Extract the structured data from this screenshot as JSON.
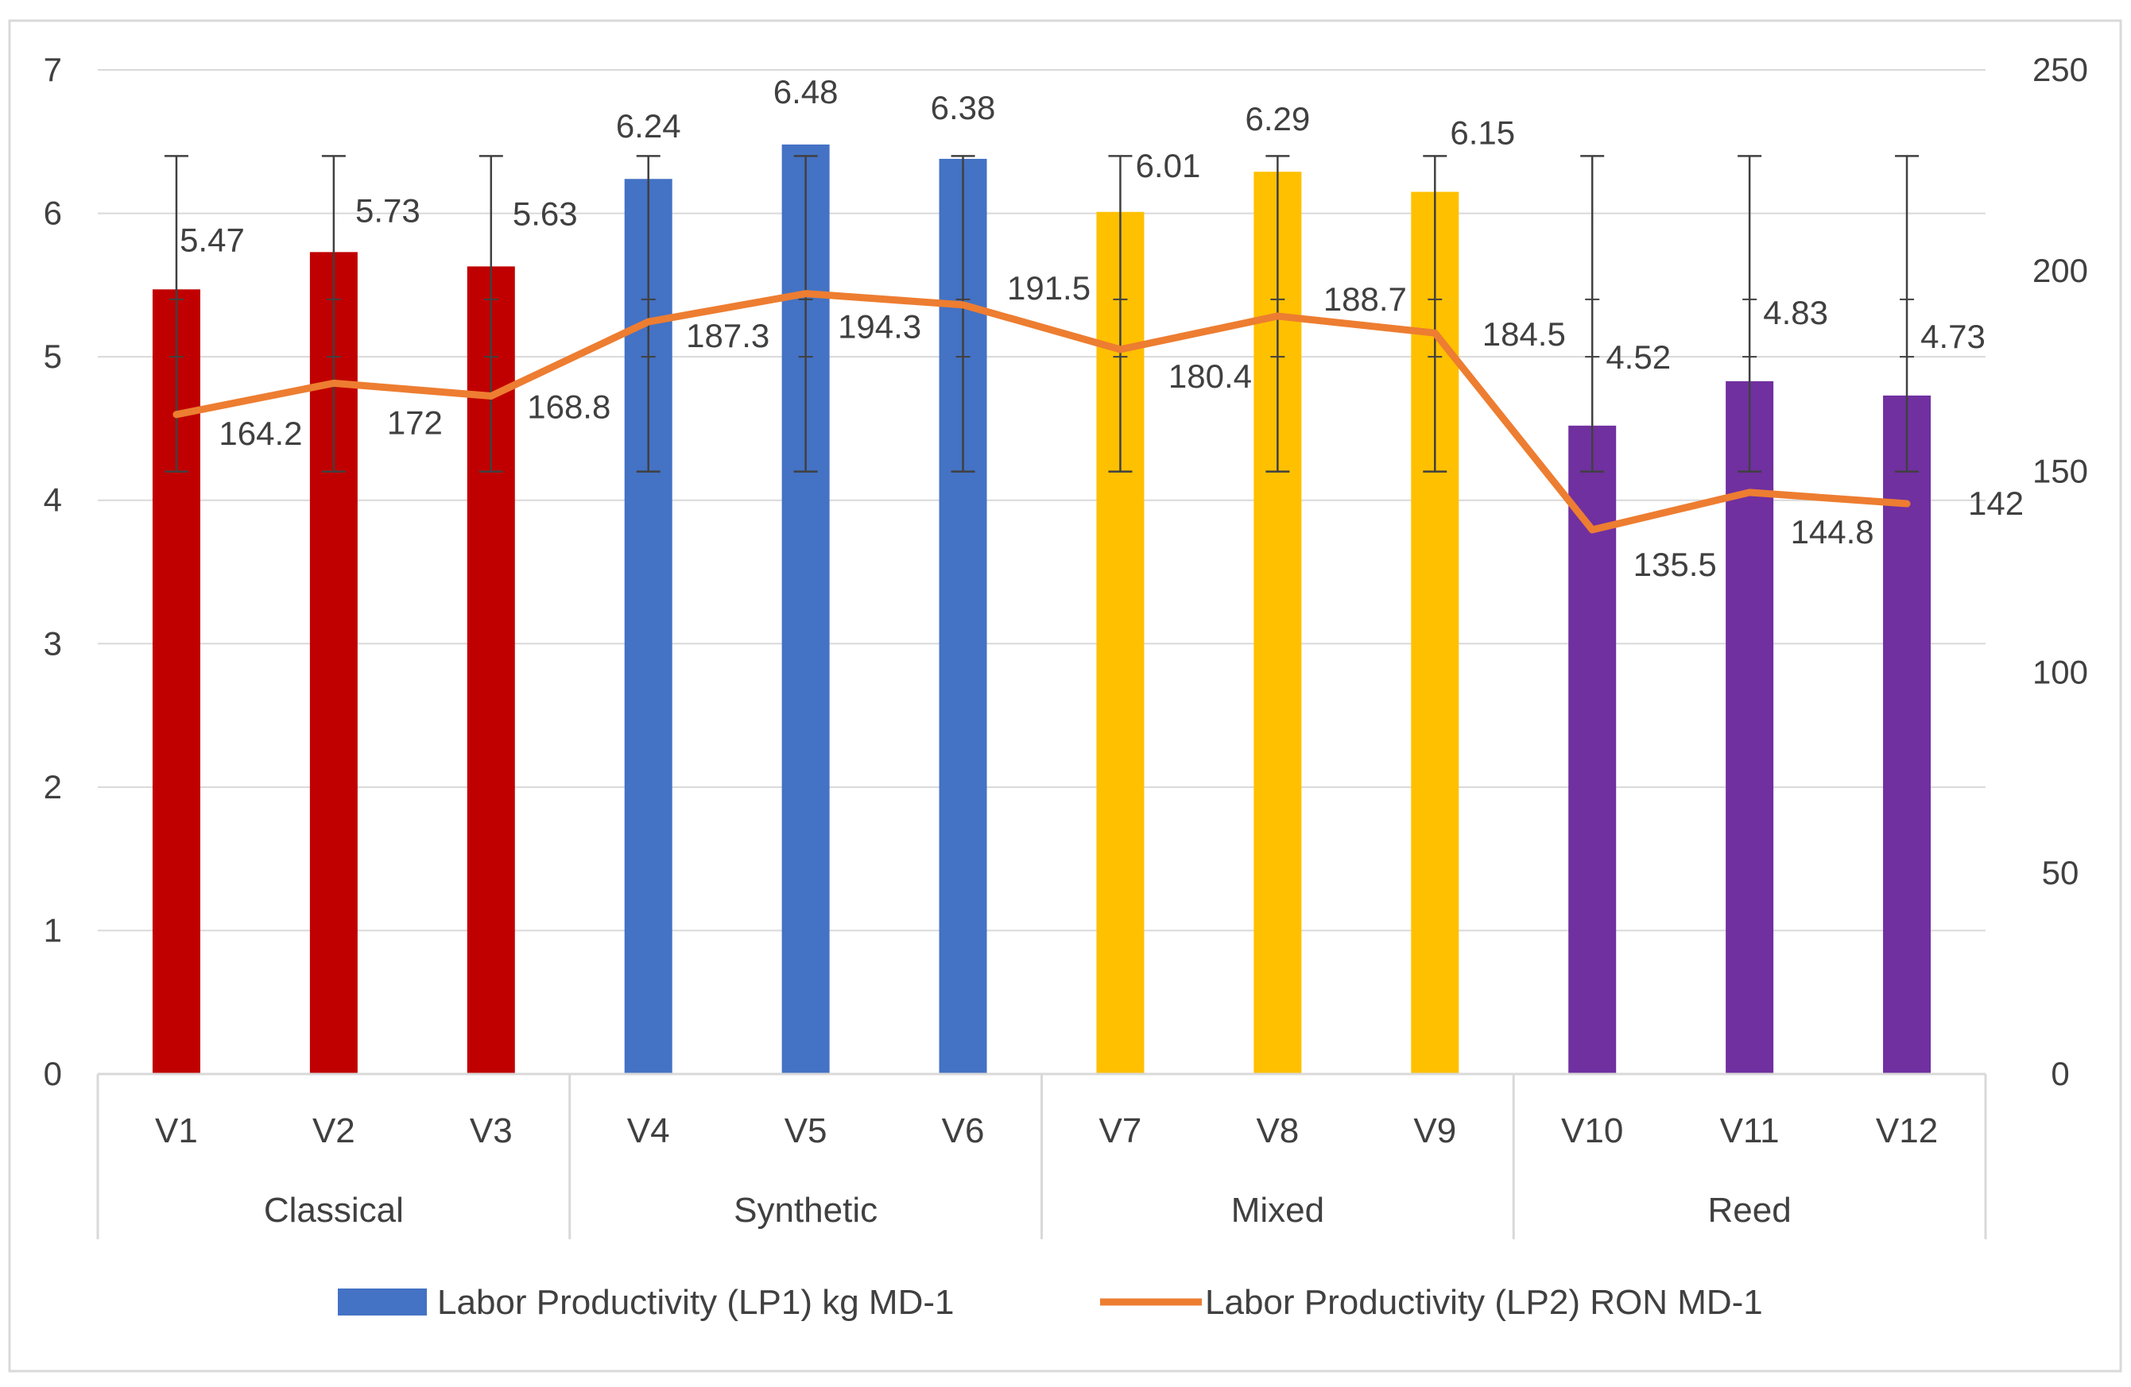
{
  "chart_data": {
    "type": "bar+line",
    "categories": [
      "V1",
      "V2",
      "V3",
      "V4",
      "V5",
      "V6",
      "V7",
      "V8",
      "V9",
      "V10",
      "V11",
      "V12"
    ],
    "groups": [
      {
        "name": "Classical",
        "members": [
          "V1",
          "V2",
          "V3"
        ],
        "color": "#C00000"
      },
      {
        "name": "Synthetic",
        "members": [
          "V4",
          "V5",
          "V6"
        ],
        "color": "#4472C4"
      },
      {
        "name": "Mixed",
        "members": [
          "V7",
          "V8",
          "V9"
        ],
        "color": "#FFC000"
      },
      {
        "name": "Reed",
        "members": [
          "V10",
          "V11",
          "V12"
        ],
        "color": "#7030A0"
      }
    ],
    "series": [
      {
        "name": "Labor Productivity (LP1) kg MD-1",
        "type": "bar",
        "axis": "left",
        "values": [
          5.47,
          5.73,
          5.63,
          6.24,
          6.48,
          6.38,
          6.01,
          6.29,
          6.15,
          4.52,
          4.83,
          4.73
        ],
        "value_labels": [
          "5.47",
          "5.73",
          "5.63",
          "6.24",
          "6.48",
          "6.38",
          "6.01",
          "6.29",
          "6.15",
          "4.52",
          "4.83",
          "4.73"
        ],
        "error_bars": {
          "low": 4.2,
          "high": 6.4,
          "inner_ticks": [
            5.0,
            5.4
          ]
        }
      },
      {
        "name": "Labor Productivity (LP2) RON MD-1",
        "type": "line",
        "axis": "right",
        "color": "#ED7D31",
        "values": [
          164.2,
          172,
          168.8,
          187.3,
          194.3,
          191.5,
          180.4,
          188.7,
          184.5,
          135.5,
          144.8,
          142
        ],
        "value_labels": [
          "164.2",
          "172",
          "168.8",
          "187.3",
          "194.3",
          "191.5",
          "180.4",
          "188.7",
          "184.5",
          "135.5",
          "144.8",
          "142"
        ]
      }
    ],
    "y_left": {
      "min": 0,
      "max": 7,
      "ticks": [
        "0",
        "1",
        "2",
        "3",
        "4",
        "5",
        "6",
        "7"
      ]
    },
    "y_right": {
      "min": 0,
      "max": 250,
      "ticks": [
        "0",
        "50",
        "100",
        "150",
        "200",
        "250"
      ]
    },
    "grid": true,
    "legend_position": "bottom"
  }
}
